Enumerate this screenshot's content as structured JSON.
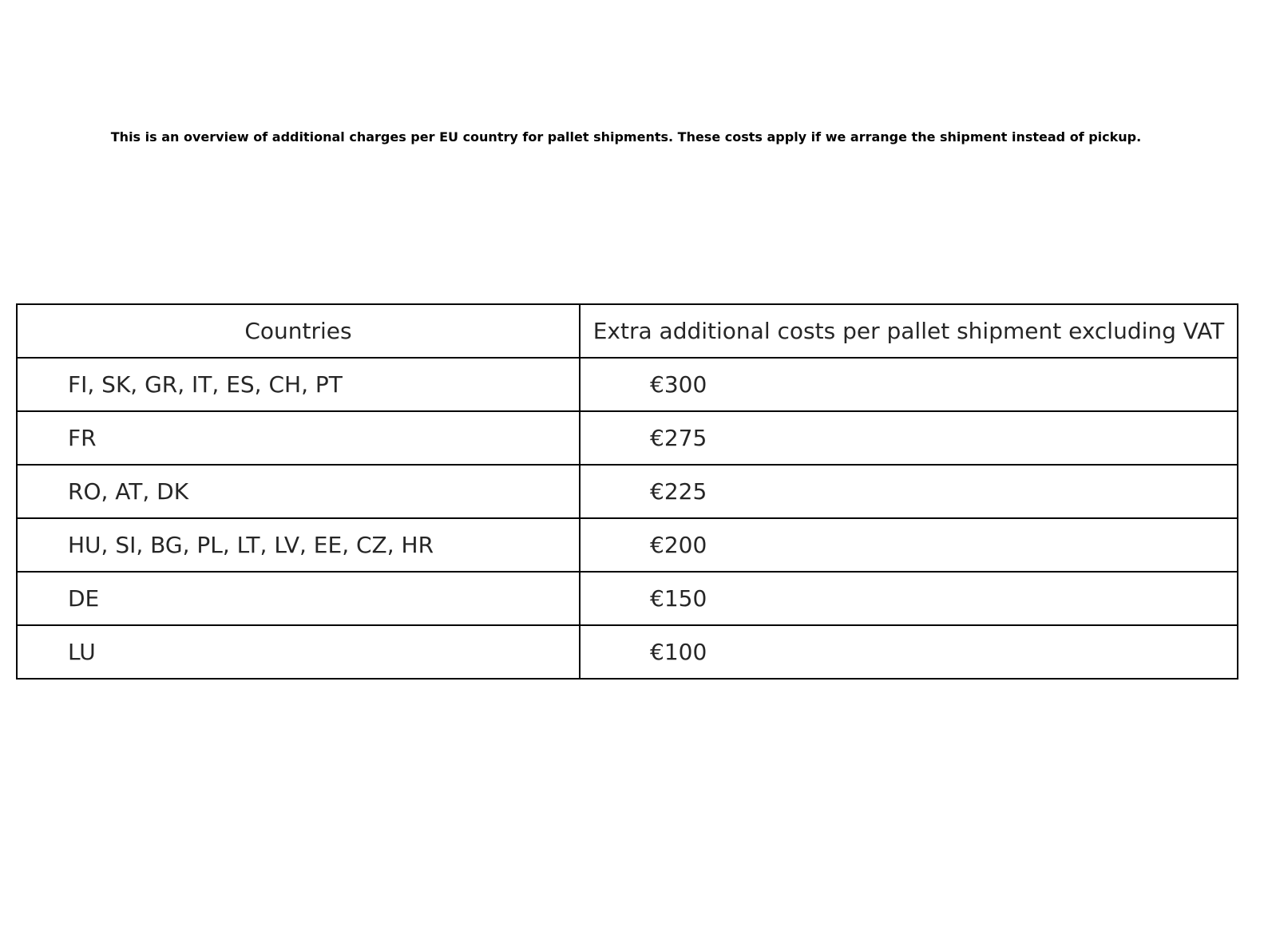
{
  "title": "This is an overview of additional charges per EU country for pallet shipments. These costs apply if we arrange the shipment instead of pickup.",
  "chart_data": {
    "type": "table",
    "title": "This is an overview of additional charges per EU country for pallet shipments. These costs apply if we arrange the shipment instead of pickup.",
    "columns": [
      "Countries",
      "Extra additional costs per pallet shipment excluding VAT"
    ],
    "rows": [
      [
        "FI, SK, GR, IT, ES, CH, PT",
        "€300"
      ],
      [
        "FR",
        "€275"
      ],
      [
        "RO, AT, DK",
        "€225"
      ],
      [
        "HU, SI, BG, PL, LT, LV, EE, CZ, HR",
        "€200"
      ],
      [
        "DE",
        "€150"
      ],
      [
        "LU",
        "€100"
      ]
    ]
  }
}
